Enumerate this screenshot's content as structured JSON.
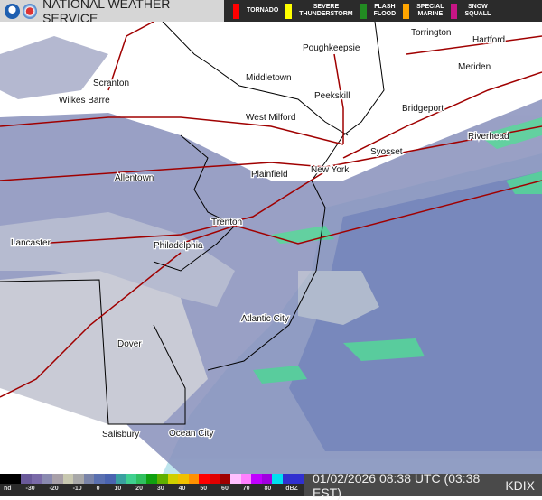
{
  "header": {
    "title": "NATIONAL WEATHER SERVICE",
    "logos": [
      "noaa-logo",
      "nws-logo"
    ],
    "warnings": [
      {
        "label": "TORNADO",
        "color": "#ff0000"
      },
      {
        "label": "SEVERE\nTHUNDERSTORM",
        "color": "#ffff00"
      },
      {
        "label": "FLASH\nFLOOD",
        "color": "#228b22"
      },
      {
        "label": "SPECIAL\nMARINE",
        "color": "#ffa500"
      },
      {
        "label": "SNOW\nSQUALL",
        "color": "#c71585"
      }
    ]
  },
  "map": {
    "cities": [
      "Torrington",
      "Poughkeepsie",
      "Hartford",
      "Meriden",
      "Scranton",
      "Middletown",
      "Wilkes Barre",
      "Peekskill",
      "Bridgeport",
      "West Milford",
      "Riverhead",
      "Syosset",
      "Allentown",
      "Plainfield",
      "New York",
      "Trenton",
      "Lancaster",
      "Philadelphia",
      "Atlantic City",
      "Dover",
      "Salisbury",
      "Ocean City"
    ]
  },
  "footer": {
    "scale_ticks": [
      "nd",
      "-30",
      "-20",
      "-10",
      "0",
      "10",
      "20",
      "30",
      "40",
      "50",
      "60",
      "70",
      "80",
      "dBZ"
    ],
    "scale_colors": [
      "#000",
      "#000",
      "#6a5a9a",
      "#7a6aa8",
      "#8a8ab0",
      "#a8a0a8",
      "#c8c8b0",
      "#a8a8a8",
      "#7a84a8",
      "#5a70b0",
      "#4a64b0",
      "#3aa0a0",
      "#40d090",
      "#30c060",
      "#10a010",
      "#60b000",
      "#d0d000",
      "#f0c000",
      "#ff9000",
      "#ff0000",
      "#e00000",
      "#a00000",
      "#ffc0ff",
      "#ff80ff",
      "#c000ff",
      "#a000e0",
      "#00e0f0",
      "#3030d0",
      "#3030d0"
    ],
    "timestamp": "01/02/2026 08:38 UTC (03:38 EST)",
    "station": "KDIX"
  }
}
